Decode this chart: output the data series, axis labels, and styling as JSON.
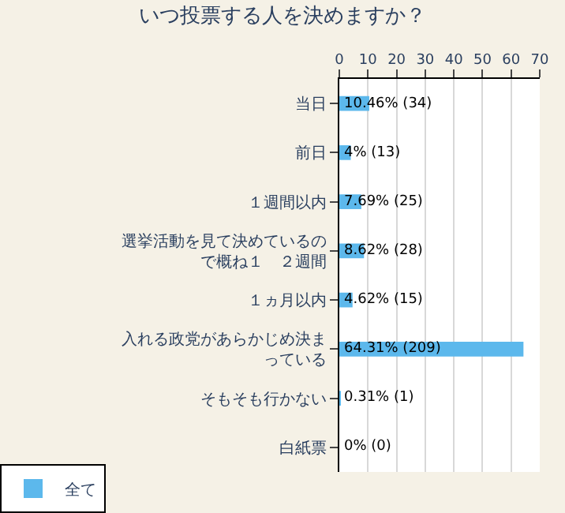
{
  "chart_data": {
    "type": "bar",
    "orientation": "horizontal",
    "title": "いつ投票する人を決めますか？",
    "categories": [
      "当日",
      "前日",
      "１週間以内",
      "選挙活動を見て決めているので概ね１　２週間",
      "１ヵ月以内",
      "入れる政党があらかじめ決まっている",
      "そもそも行かない",
      "白紙票"
    ],
    "series": [
      {
        "name": "全て",
        "color": "#5cb8ec",
        "values": [
          10.46,
          4,
          7.69,
          8.62,
          4.62,
          64.31,
          0.31,
          0
        ],
        "value_labels": [
          "10.46% (34)",
          "4% (13)",
          "7.69% (25)",
          "8.62% (28)",
          "4.62% (15)",
          "64.31% (209)",
          "0.31% (1)",
          "0% (0)"
        ]
      }
    ],
    "xlim": [
      0,
      70
    ],
    "xticks": [
      0,
      10,
      20,
      30,
      40,
      50,
      60,
      70
    ],
    "grid": "x",
    "legend": "bottom left"
  }
}
